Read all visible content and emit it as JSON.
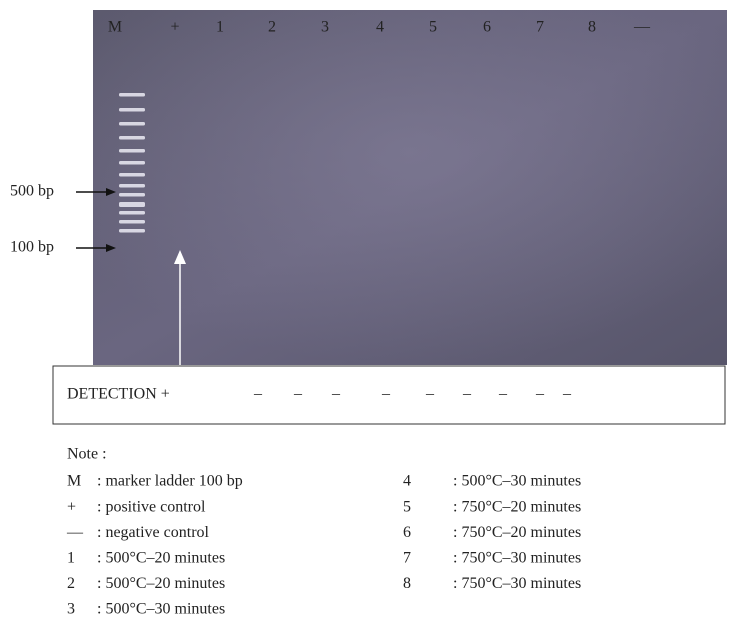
{
  "lane_labels": [
    "M",
    "+",
    "1",
    "2",
    "3",
    "4",
    "5",
    "6",
    "7",
    "8",
    "—"
  ],
  "marker_labels": [
    "500 bp",
    "100 bp"
  ],
  "detection": {
    "label": "DETECTION +",
    "marks": [
      "–",
      "–",
      "–",
      "–",
      "–",
      "–",
      "–",
      "–",
      "–"
    ]
  },
  "note": {
    "title": "Note :",
    "items": [
      {
        "key": "M",
        "text": ": marker ladder 100 bp"
      },
      {
        "key": "+",
        "text": ": positive control"
      },
      {
        "key": "—",
        "text": ": negative control"
      },
      {
        "key": "1",
        "text": ": 500°C–20 minutes"
      },
      {
        "key": "2",
        "text": ": 500°C–20 minutes"
      },
      {
        "key": "3",
        "text": ": 500°C–30 minutes"
      },
      {
        "key": "4",
        "text": ": 500°C–30 minutes"
      },
      {
        "key": "5",
        "text": ": 750°C–20 minutes"
      },
      {
        "key": "6",
        "text": ": 750°C–20 minutes"
      },
      {
        "key": "7",
        "text": ": 750°C–30 minutes"
      },
      {
        "key": "8",
        "text": ": 750°C–30 minutes"
      }
    ]
  }
}
